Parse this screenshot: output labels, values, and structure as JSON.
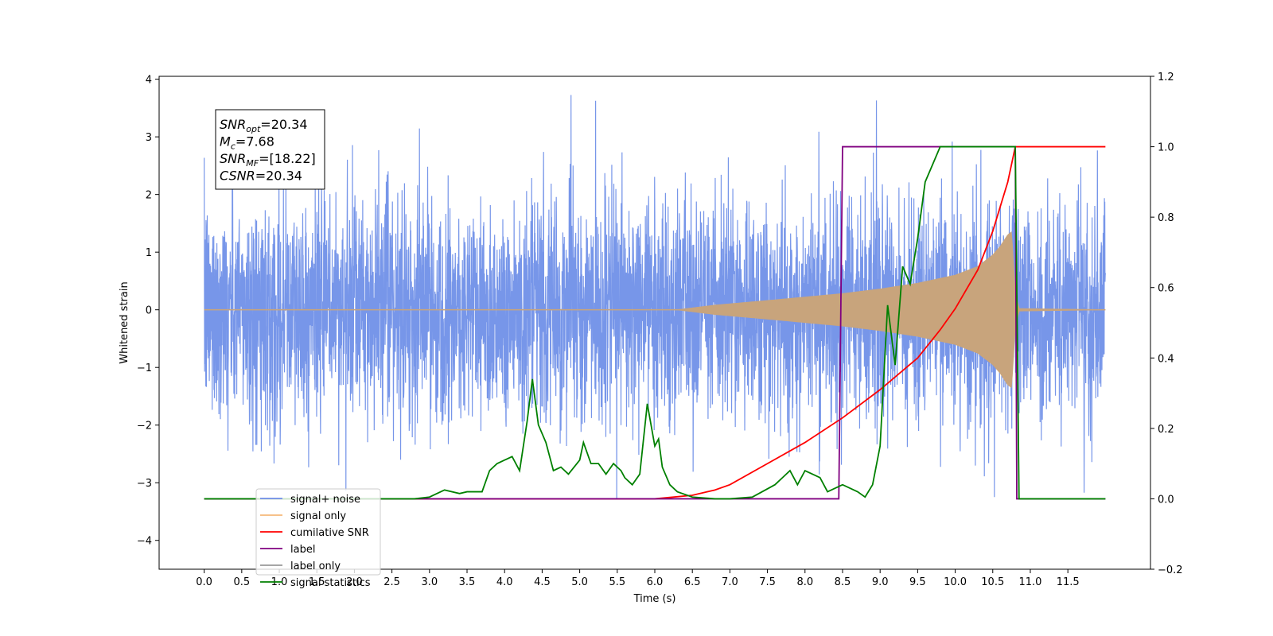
{
  "chart_data": {
    "type": "line",
    "xlabel": "Time (s)",
    "ylabel": "Whitened strain",
    "xlim": [
      -0.6,
      12.6
    ],
    "ylim": [
      -4.5,
      4.05
    ],
    "y2lim": [
      -0.2,
      1.2
    ],
    "x_ticks": [
      0.0,
      0.5,
      1.0,
      1.5,
      2.0,
      2.5,
      3.0,
      3.5,
      4.0,
      4.5,
      5.0,
      5.5,
      6.0,
      6.5,
      7.0,
      7.5,
      8.0,
      8.5,
      9.0,
      9.5,
      10.0,
      10.5,
      11.0,
      11.5
    ],
    "x_tick_labels": [
      "0.0",
      "0.5",
      "1.0",
      "1.5",
      "2.0",
      "2.5",
      "3.0",
      "3.5",
      "4.0",
      "4.5",
      "5.0",
      "5.5",
      "6.0",
      "6.5",
      "7.0",
      "7.5",
      "8.0",
      "8.5",
      "9.0",
      "9.5",
      "10.0",
      "10.5",
      "11.0",
      "11.5"
    ],
    "y_ticks": [
      -4,
      -3,
      -2,
      -1,
      0,
      1,
      2,
      3,
      4
    ],
    "y_tick_labels": [
      "−4",
      "−3",
      "−2",
      "−1",
      "0",
      "1",
      "2",
      "3",
      "4"
    ],
    "y2_ticks": [
      -0.2,
      0.0,
      0.2,
      0.4,
      0.6,
      0.8,
      1.0,
      1.2
    ],
    "y2_tick_labels": [
      "−0.2",
      "0.0",
      "0.2",
      "0.4",
      "0.6",
      "0.8",
      "1.0",
      "1.2"
    ],
    "annotation": [
      {
        "base": "SNR",
        "sub": "opt",
        "rest": "=20.34"
      },
      {
        "base": "M",
        "sub": "c",
        "rest": "=7.68"
      },
      {
        "base": "SNR",
        "sub": "MF",
        "rest": "=[18.22]"
      },
      {
        "base": "CSNR",
        "sub": "",
        "rest": "=20.34"
      }
    ],
    "legend_position": "lower-left",
    "legend": [
      {
        "label": "signal+ noise",
        "color": "#6f8de8"
      },
      {
        "label": "signal only",
        "color": "#f5b87a"
      },
      {
        "label": "cumilative SNR",
        "color": "#ff0000"
      },
      {
        "label": "label",
        "color": "#800080"
      },
      {
        "label": "label only",
        "color": "#9a9a9a"
      },
      {
        "label": "signal statistics",
        "color": "#008000"
      }
    ],
    "series": [
      {
        "name": "signal+ noise",
        "axis": "left",
        "color": "#7090e8",
        "description": "whitened strain noise, approx. Gaussian, sigma ~1, spanning t=0 to 12",
        "t_start": 0.0,
        "t_end": 12.0,
        "sigma": 1.0
      },
      {
        "name": "signal only",
        "axis": "left",
        "color": "#c8a47c",
        "chirp_amplitude": {
          "t": [
            0,
            6.3,
            6.8,
            7.5,
            8.0,
            8.5,
            9.0,
            9.5,
            10.0,
            10.3,
            10.5,
            10.6,
            10.7,
            10.75,
            10.8,
            10.85,
            12.0
          ],
          "amp": [
            0,
            0.0,
            0.08,
            0.16,
            0.22,
            0.28,
            0.36,
            0.46,
            0.6,
            0.75,
            0.95,
            1.1,
            1.3,
            1.35,
            0.3,
            0.02,
            0.0
          ]
        }
      },
      {
        "name": "cumilative SNR",
        "axis": "right",
        "color": "#ff0000",
        "x": [
          0,
          6.0,
          6.5,
          6.8,
          7.0,
          7.5,
          8.0,
          8.5,
          9.0,
          9.5,
          9.8,
          10.0,
          10.3,
          10.5,
          10.7,
          10.8,
          10.82,
          12.0
        ],
        "y": [
          0,
          0.0,
          0.01,
          0.025,
          0.04,
          0.1,
          0.16,
          0.23,
          0.31,
          0.4,
          0.48,
          0.54,
          0.65,
          0.76,
          0.9,
          1.0,
          1.0,
          1.0
        ]
      },
      {
        "name": "label",
        "axis": "right",
        "color": "#800080",
        "x": [
          0,
          8.45,
          8.5,
          10.8,
          10.82,
          12.0
        ],
        "y": [
          0,
          0,
          1,
          1,
          0,
          0
        ]
      },
      {
        "name": "signal statistics",
        "axis": "right",
        "color": "#008000",
        "x": [
          0,
          2.8,
          3.0,
          3.2,
          3.4,
          3.5,
          3.7,
          3.8,
          3.9,
          4.0,
          4.1,
          4.2,
          4.3,
          4.37,
          4.45,
          4.55,
          4.65,
          4.75,
          4.85,
          5.0,
          5.05,
          5.15,
          5.25,
          5.35,
          5.45,
          5.55,
          5.6,
          5.7,
          5.8,
          5.9,
          6.0,
          6.05,
          6.1,
          6.2,
          6.3,
          6.5,
          6.8,
          7.0,
          7.3,
          7.6,
          7.7,
          7.8,
          7.9,
          8.0,
          8.2,
          8.3,
          8.5,
          8.7,
          8.8,
          8.9,
          9.0,
          9.1,
          9.2,
          9.3,
          9.4,
          9.5,
          9.6,
          9.7,
          9.8,
          10.0,
          10.5,
          10.8,
          10.85,
          10.9,
          12.0
        ],
        "y": [
          0,
          0.0,
          0.005,
          0.025,
          0.015,
          0.02,
          0.02,
          0.08,
          0.1,
          0.11,
          0.12,
          0.08,
          0.22,
          0.34,
          0.21,
          0.16,
          0.08,
          0.09,
          0.07,
          0.11,
          0.16,
          0.1,
          0.1,
          0.07,
          0.1,
          0.08,
          0.06,
          0.04,
          0.07,
          0.27,
          0.15,
          0.17,
          0.09,
          0.04,
          0.02,
          0.005,
          0.0,
          0.0,
          0.005,
          0.04,
          0.06,
          0.08,
          0.04,
          0.08,
          0.06,
          0.02,
          0.04,
          0.02,
          0.005,
          0.04,
          0.15,
          0.55,
          0.38,
          0.66,
          0.61,
          0.74,
          0.9,
          0.95,
          1.0,
          1.0,
          1.0,
          1.0,
          0.0,
          0.0,
          0.0
        ]
      }
    ]
  }
}
